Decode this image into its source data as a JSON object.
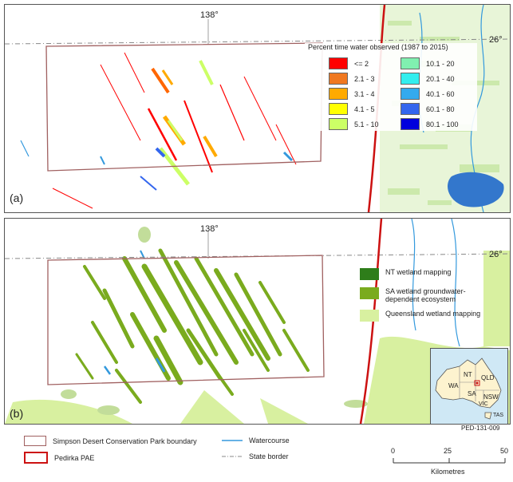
{
  "panel_a": {
    "letter": "(a)",
    "longitude_label": "138°",
    "latitude_label": "26°",
    "legend_title": "Percent time water observed (1987 to 2015)",
    "classes": [
      {
        "label": "<= 2",
        "color": "#ff0000"
      },
      {
        "label": "2.1 - 3",
        "color": "#f07820"
      },
      {
        "label": "3.1 - 4",
        "color": "#ffaa00"
      },
      {
        "label": "4.1 - 5",
        "color": "#ffff00"
      },
      {
        "label": "5.1 - 10",
        "color": "#ccff66"
      },
      {
        "label": "10.1 - 20",
        "color": "#80f0b0"
      },
      {
        "label": "20.1 - 40",
        "color": "#33eeee"
      },
      {
        "label": "40.1 - 60",
        "color": "#33aaee"
      },
      {
        "label": "60.1 - 80",
        "color": "#3366ee"
      },
      {
        "label": "80.1 - 100",
        "color": "#0000dd"
      }
    ]
  },
  "panel_b": {
    "letter": "(b)",
    "longitude_label": "138°",
    "latitude_label": "26°",
    "wetland_legend": [
      {
        "label": "NT wetland mapping",
        "color": "#2e7d1a"
      },
      {
        "label": "SA wetland groundwater-dependent ecosystem",
        "color": "#7aab1e"
      },
      {
        "label": "Queensland wetland mapping",
        "color": "#d8f0a0"
      }
    ]
  },
  "inset_map": {
    "labels": [
      "WA",
      "NT",
      "QLD",
      "SA",
      "NSW",
      "VIC",
      "TAS"
    ],
    "land_color": "#fdf3cf",
    "sea_color": "#cfe8f5"
  },
  "figure_id": "PED-131-009",
  "legend": {
    "items": [
      {
        "label": "Simpson Desert Conservation Park boundary",
        "style": "box",
        "color": "#a06060"
      },
      {
        "label": "Pedirka PAE",
        "style": "box",
        "color": "#cc1111"
      },
      {
        "label": "Watercourse",
        "style": "line",
        "color": "#3399dd"
      },
      {
        "label": "State border",
        "style": "dashline",
        "color": "#888888"
      }
    ]
  },
  "scale_bar": {
    "ticks": [
      "0",
      "25",
      "50"
    ],
    "unit": "Kilometres"
  }
}
